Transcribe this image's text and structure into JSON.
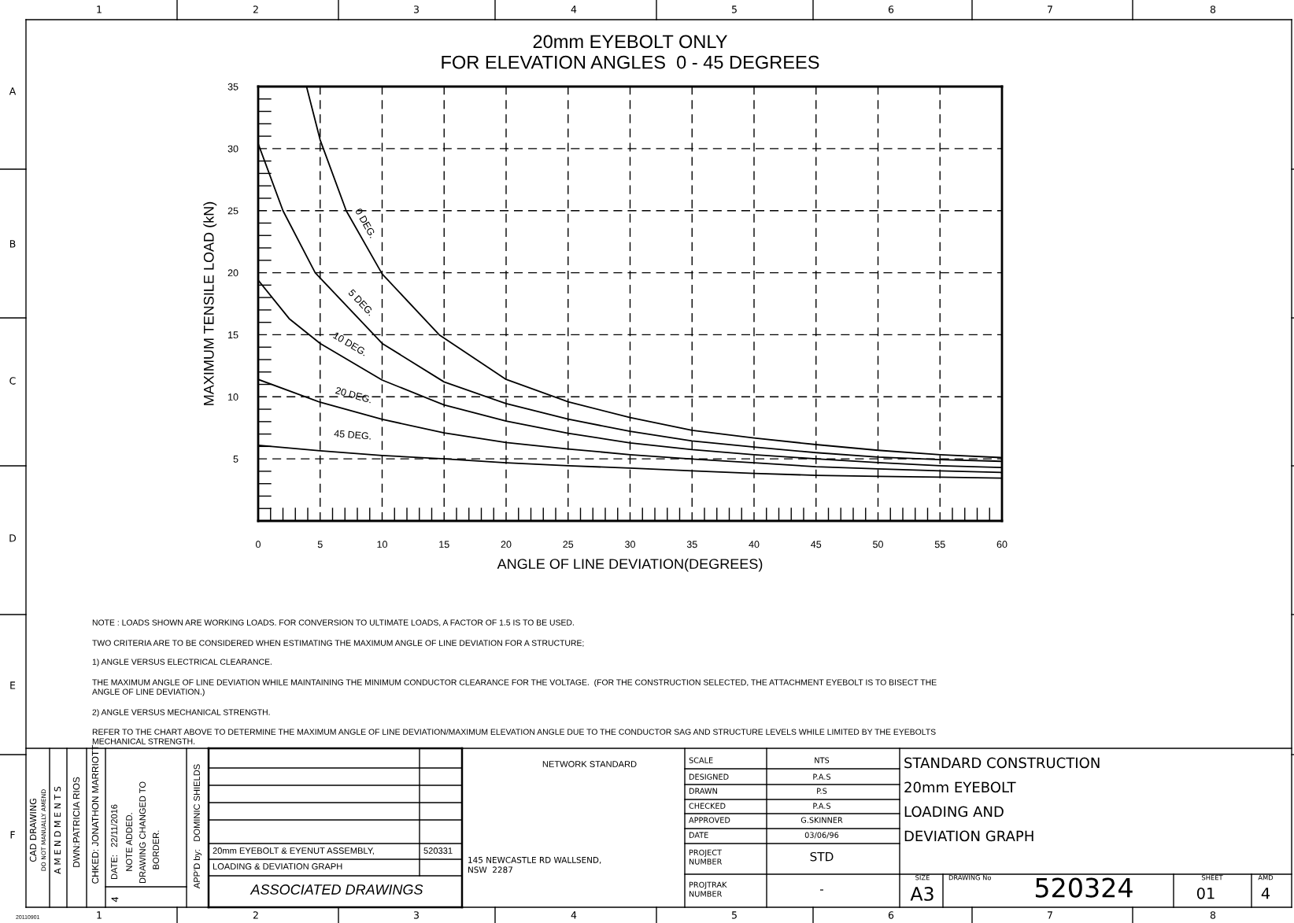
{
  "chart_data": {
    "type": "line",
    "title": "20mm EYEBOLT ONLY\nFOR ELEVATION ANGLES  0 - 45 DEGREES",
    "xlabel": "ANGLE OF LINE DEVIATION(DEGREES)",
    "ylabel": "MAXIMUM TENSILE LOAD (kN)",
    "xlim": [
      0,
      60
    ],
    "xticks": [
      0,
      5,
      10,
      15,
      20,
      25,
      30,
      35,
      40,
      45,
      50,
      55,
      60
    ],
    "ylim": [
      0,
      35
    ],
    "yticks": [
      {
        "value": 0,
        "label": null
      },
      5,
      10,
      15,
      20,
      25,
      30,
      35
    ],
    "grid": true,
    "line_style": "solid",
    "marker": "none",
    "series": [
      {
        "name": "0 DEG.",
        "color": "#000000",
        "x": [
          3.9,
          5,
          7.1,
          10,
          14.6,
          20,
          25,
          30,
          35,
          40,
          45,
          50,
          55,
          60
        ],
        "values": [
          35,
          30.7,
          25,
          19.9,
          15,
          11.4,
          9.6,
          8.33,
          7.3,
          6.68,
          6.15,
          5.69,
          5.34,
          5.1
        ]
      },
      {
        "name": "5 DEG.",
        "color": "#000000",
        "x": [
          0,
          2,
          4.6,
          10,
          15,
          20,
          25,
          30,
          35,
          40,
          45,
          50,
          55,
          60
        ],
        "values": [
          30.4,
          25,
          20,
          14.3,
          11.2,
          9.45,
          8.2,
          7.22,
          6.45,
          5.95,
          5.5,
          5.14,
          4.94,
          4.8
        ]
      },
      {
        "name": "10 DEG.",
        "color": "#000000",
        "x": [
          0,
          2.5,
          5,
          10,
          15,
          20,
          25,
          30,
          35,
          40,
          45,
          50,
          55,
          60
        ],
        "values": [
          19.4,
          16.3,
          14.3,
          11.35,
          9.34,
          8.04,
          7.06,
          6.29,
          5.75,
          5.34,
          5.0,
          4.7,
          4.45,
          4.3
        ]
      },
      {
        "name": "20 DEG.",
        "color": "#000000",
        "x": [
          0,
          5,
          10,
          15,
          20,
          25,
          30,
          35,
          40,
          45,
          50,
          55,
          60
        ],
        "values": [
          11.4,
          9.56,
          8.18,
          7.1,
          6.32,
          5.8,
          5.34,
          4.98,
          4.68,
          4.37,
          4.19,
          4.03,
          3.9
        ]
      },
      {
        "name": "45 DEG.",
        "color": "#000000",
        "x": [
          0,
          5,
          10,
          15,
          20,
          25,
          30,
          35,
          40,
          45,
          50,
          55,
          60
        ],
        "values": [
          6.1,
          5.65,
          5.27,
          5.0,
          4.69,
          4.45,
          4.25,
          4.03,
          3.83,
          3.67,
          3.59,
          3.53,
          3.45
        ]
      }
    ],
    "annotations": [
      "NOTE : LOADS SHOWN ARE WORKING LOADS. FOR CONVERSION TO ULTIMATE LOADS, A FACTOR OF 1.5 IS TO BE USED.",
      "TWO CRITERIA ARE TO BE CONSIDERED WHEN ESTIMATING THE MAXIMUM ANGLE OF LINE DEVIATION FOR A STRUCTURE;",
      "1) ANGLE VERSUS ELECTRICAL CLEARANCE.",
      "THE MAXIMUM ANGLE OF LINE DEVIATION WHILE MAINTAINING THE MINIMUM CONDUCTOR CLEARANCE FOR THE VOLTAGE.  (FOR THE CONSTRUCTION SELECTED, THE ATTACHMENT EYEBOLT IS TO BISECT THE\nANGLE OF LINE DEVIATION.)",
      "2) ANGLE VERSUS MECHANICAL STRENGTH.",
      "REFER TO THE CHART ABOVE TO DETERMINE THE MAXIMUM ANGLE OF LINE DEVIATION/MAXIMUM ELEVATION ANGLE DUE TO THE CONDUCTOR SAG AND STRUCTURE LEVELS WHILE LIMITED BY THE EYEBOLTS\nMECHANICAL STRENGTH.",
      "CAD DRAWING",
      "DO NOT MANUALLY AMEND",
      "A M E N D M E N T S",
      "DWN:PATRICIA RIOS",
      "CHKED: JONATHON MARRIOTT",
      "DATE:   22/11/2016",
      "NOTE ADDED.",
      "DRAWING CHANGED TO",
      "BORDER.",
      "4",
      "APP'D by:   DOMINIC SHIELDS",
      "20mm EYEBOLT & EYENUT ASSEMBLY,",
      "520331",
      "LOADING & DEVIATION GRAPH",
      "ASSOCIATED DRAWINGS",
      "NETWORK STANDARD",
      "145 NEWCASTLE RD WALLSEND,\nNSW  2287",
      "20110901",
      "SCALE",
      "NTS",
      "DESIGNED",
      "P.A.S",
      "DRAWN",
      "P.S",
      "CHECKED",
      "P.A.S",
      "APPROVED",
      "G.SKINNER",
      "DATE",
      "03/06/96",
      "PROJECT\nNUMBER",
      "STD",
      "PROJTRAK\nNUMBER",
      "-",
      "STANDARD CONSTRUCTION",
      "20mm EYEBOLT",
      "LOADING AND",
      "DEVIATION GRAPH",
      "SIZE",
      "A3",
      "DRAWING No",
      "520324",
      "SHEET",
      "01",
      "AMD",
      "4",
      "1",
      "2",
      "3",
      "4",
      "5",
      "6",
      "7",
      "8",
      "1",
      "2",
      "3",
      "4",
      "5",
      "6",
      "7",
      "8",
      "A",
      "B",
      "C",
      "D",
      "E",
      "F"
    ]
  }
}
